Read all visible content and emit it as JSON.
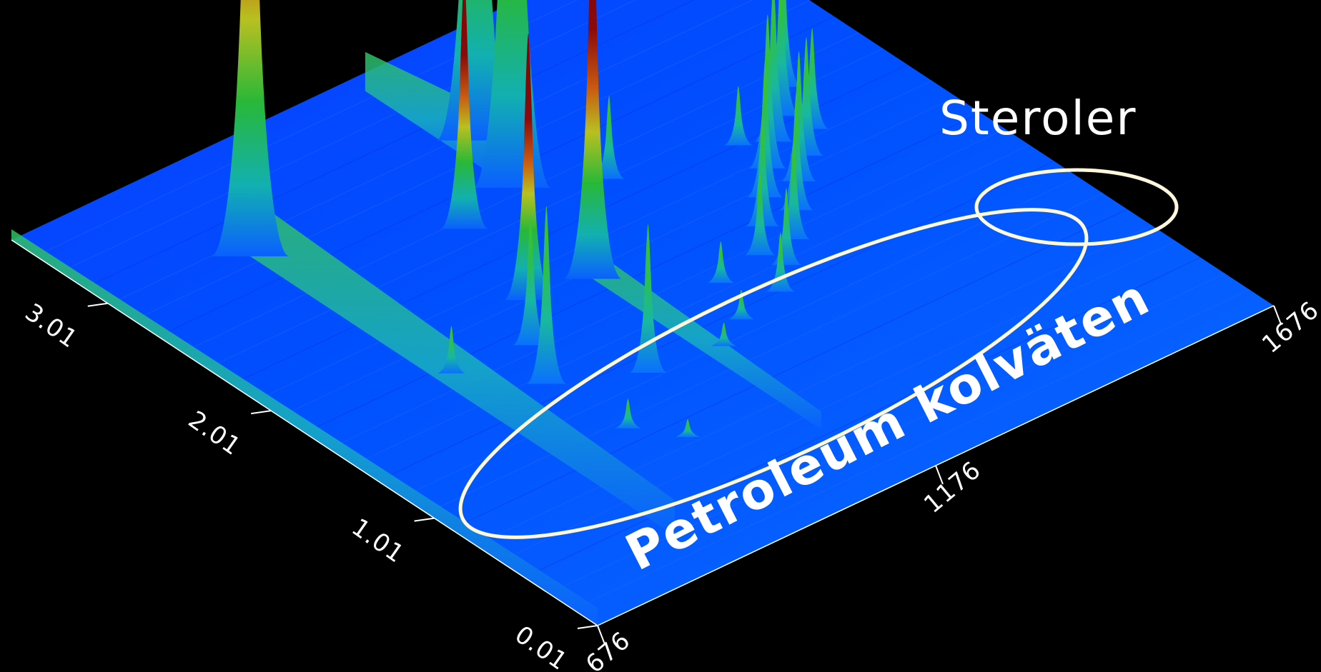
{
  "chart_data": {
    "type": "surface",
    "title": "",
    "xlabel": "",
    "ylabel": "",
    "zlabel": "",
    "x_axis": {
      "ticks": [
        676,
        1176,
        1676
      ],
      "tick_labels": [
        "676",
        "1176",
        "1676"
      ],
      "range": [
        676,
        1676
      ]
    },
    "y_axis": {
      "ticks": [
        0.01,
        1.01,
        2.01,
        3.01
      ],
      "tick_labels": [
        "0.01",
        "1.01",
        "2.01",
        "3.01"
      ],
      "range": [
        0.01,
        3.6
      ]
    },
    "colormap": [
      "#1030ff",
      "#0a60ff",
      "#10c0c0",
      "#30c040",
      "#c0c020",
      "#d06010",
      "#8a0a0a"
    ],
    "background_color": "#000000",
    "peaks": [
      {
        "x": 860,
        "y": 2.9,
        "height": 1.0
      },
      {
        "x": 1125,
        "y": 1.9,
        "height": 0.62
      },
      {
        "x": 1175,
        "y": 2.6,
        "height": 1.3
      },
      {
        "x": 1205,
        "y": 2.95,
        "height": 1.2
      },
      {
        "x": 1042,
        "y": 1.95,
        "height": 0.45
      },
      {
        "x": 1080,
        "y": 2.5,
        "height": 0.43
      },
      {
        "x": 948,
        "y": 1.45,
        "height": 0.3
      },
      {
        "x": 985,
        "y": 1.7,
        "height": 0.22
      },
      {
        "x": 1050,
        "y": 1.25,
        "height": 0.25
      },
      {
        "x": 880,
        "y": 1.75,
        "height": 0.08
      },
      {
        "x": 1270,
        "y": 2.4,
        "height": 0.14
      },
      {
        "x": 1425,
        "y": 2.25,
        "height": 0.1
      },
      {
        "x": 1300,
        "y": 1.6,
        "height": 0.14
      },
      {
        "x": 1340,
        "y": 1.75,
        "height": 0.19
      },
      {
        "x": 1380,
        "y": 1.9,
        "height": 0.23
      },
      {
        "x": 1420,
        "y": 2.05,
        "height": 0.26
      },
      {
        "x": 1460,
        "y": 2.18,
        "height": 0.27
      },
      {
        "x": 1500,
        "y": 2.3,
        "height": 0.25
      },
      {
        "x": 1540,
        "y": 2.45,
        "height": 0.22
      },
      {
        "x": 1270,
        "y": 1.35,
        "height": 0.1
      },
      {
        "x": 1310,
        "y": 1.48,
        "height": 0.13
      },
      {
        "x": 1350,
        "y": 1.6,
        "height": 0.17
      },
      {
        "x": 1390,
        "y": 1.75,
        "height": 0.2
      },
      {
        "x": 1430,
        "y": 1.9,
        "height": 0.22
      },
      {
        "x": 1470,
        "y": 2.02,
        "height": 0.2
      },
      {
        "x": 1510,
        "y": 2.15,
        "height": 0.17
      },
      {
        "x": 1230,
        "y": 1.55,
        "height": 0.07
      },
      {
        "x": 1200,
        "y": 1.3,
        "height": 0.05
      },
      {
        "x": 1150,
        "y": 1.2,
        "height": 0.04
      },
      {
        "x": 960,
        "y": 1.0,
        "height": 0.05
      },
      {
        "x": 1000,
        "y": 0.8,
        "height": 0.03
      }
    ],
    "ridges": [
      {
        "x": 860,
        "y_from": 2.9,
        "y_to": 0.3,
        "height": 0.1
      },
      {
        "x": 1125,
        "y_from": 1.9,
        "y_to": 0.5,
        "height": 0.05
      },
      {
        "x": 1175,
        "y_from": 2.6,
        "y_to": 3.5,
        "height": 0.11
      },
      {
        "x": 676,
        "y_from": 0.01,
        "y_to": 3.6,
        "height": 0.03
      }
    ],
    "annotations": [
      {
        "text": "Steroler",
        "target": "sterol peaks",
        "shape": "ellipse"
      },
      {
        "text": "Petroleum kolväten",
        "target": "hydrocarbon peak series",
        "shape": "ellipse"
      }
    ]
  },
  "labels": {
    "sterols": "Steroler",
    "petroleum": "Petroleum kolväten"
  },
  "colors": {
    "annotation_outline": "#fff8dc",
    "text": "#ffffff",
    "axis": "#ffffff"
  }
}
